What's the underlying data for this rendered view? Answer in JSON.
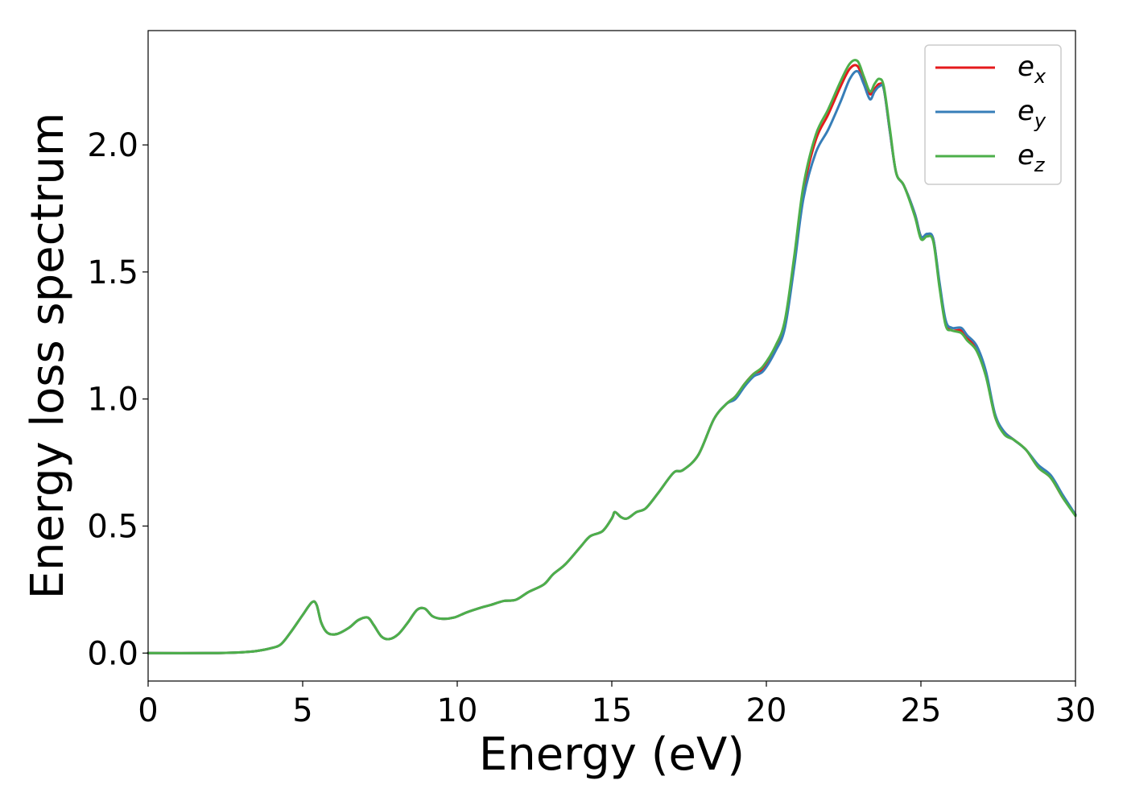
{
  "chart_data": {
    "type": "line",
    "title": "",
    "xlabel": "Energy (eV)",
    "ylabel": "Energy loss spectrum",
    "xlim": [
      0,
      30
    ],
    "ylim": [
      -0.11,
      2.45
    ],
    "xticks": [
      0,
      5,
      10,
      15,
      20,
      25,
      30
    ],
    "xtick_labels": [
      "0",
      "5",
      "10",
      "15",
      "20",
      "25",
      "30"
    ],
    "yticks": [
      0.0,
      0.5,
      1.0,
      1.5,
      2.0
    ],
    "ytick_labels": [
      "0.0",
      "0.5",
      "1.0",
      "1.5",
      "2.0"
    ],
    "grid": false,
    "legend_position": "top-right",
    "series": [
      {
        "name": "e_x",
        "legend_base": "e",
        "legend_sub": "x",
        "color": "#e41a1c",
        "x": [
          0,
          2,
          3,
          3.5,
          4,
          4.3,
          4.6,
          5,
          5.3,
          5.45,
          5.6,
          5.8,
          6.1,
          6.5,
          6.8,
          7.1,
          7.3,
          7.55,
          7.8,
          8.1,
          8.4,
          8.7,
          8.95,
          9.2,
          9.5,
          9.9,
          10.3,
          10.8,
          11.1,
          11.5,
          11.9,
          12.3,
          12.8,
          13.1,
          13.5,
          14,
          14.3,
          14.7,
          15,
          15.1,
          15.3,
          15.5,
          15.8,
          16.1,
          16.5,
          17,
          17.3,
          17.8,
          18.3,
          18.7,
          19,
          19.3,
          19.6,
          19.9,
          20.3,
          20.6,
          20.9,
          21.2,
          21.6,
          22,
          22.4,
          22.7,
          22.95,
          23.15,
          23.35,
          23.5,
          23.65,
          23.8,
          24,
          24.2,
          24.45,
          24.8,
          25,
          25.2,
          25.4,
          25.6,
          25.8,
          26,
          26.3,
          26.5,
          26.8,
          27.1,
          27.4,
          27.7,
          28,
          28.4,
          28.8,
          29.2,
          29.6,
          30
        ],
        "y": [
          0,
          0,
          0.003,
          0.008,
          0.02,
          0.035,
          0.08,
          0.15,
          0.2,
          0.19,
          0.12,
          0.08,
          0.075,
          0.1,
          0.13,
          0.14,
          0.11,
          0.065,
          0.055,
          0.075,
          0.12,
          0.17,
          0.175,
          0.145,
          0.135,
          0.14,
          0.16,
          0.18,
          0.19,
          0.205,
          0.21,
          0.24,
          0.27,
          0.31,
          0.35,
          0.42,
          0.46,
          0.48,
          0.53,
          0.555,
          0.535,
          0.53,
          0.555,
          0.57,
          0.63,
          0.71,
          0.72,
          0.78,
          0.92,
          0.98,
          1.01,
          1.06,
          1.1,
          1.12,
          1.2,
          1.3,
          1.55,
          1.82,
          2.02,
          2.12,
          2.23,
          2.3,
          2.31,
          2.25,
          2.2,
          2.22,
          2.24,
          2.22,
          2.05,
          1.89,
          1.84,
          1.73,
          1.64,
          1.64,
          1.63,
          1.45,
          1.3,
          1.27,
          1.27,
          1.24,
          1.2,
          1.1,
          0.93,
          0.87,
          0.84,
          0.8,
          0.73,
          0.69,
          0.61,
          0.545
        ]
      },
      {
        "name": "e_y",
        "legend_base": "e",
        "legend_sub": "y",
        "color": "#377eb8",
        "x": [
          0,
          2,
          3,
          3.5,
          4,
          4.3,
          4.6,
          5,
          5.3,
          5.45,
          5.6,
          5.8,
          6.1,
          6.5,
          6.8,
          7.1,
          7.3,
          7.55,
          7.8,
          8.1,
          8.4,
          8.7,
          8.95,
          9.2,
          9.5,
          9.9,
          10.3,
          10.8,
          11.1,
          11.5,
          11.9,
          12.3,
          12.8,
          13.1,
          13.5,
          14,
          14.3,
          14.7,
          15,
          15.1,
          15.3,
          15.5,
          15.8,
          16.1,
          16.5,
          17,
          17.3,
          17.8,
          18.3,
          18.7,
          19,
          19.3,
          19.6,
          19.9,
          20.3,
          20.6,
          20.9,
          21.2,
          21.6,
          22,
          22.4,
          22.7,
          22.95,
          23.15,
          23.35,
          23.5,
          23.65,
          23.8,
          24,
          24.2,
          24.45,
          24.8,
          25,
          25.2,
          25.4,
          25.6,
          25.8,
          26,
          26.3,
          26.5,
          26.8,
          27.1,
          27.4,
          27.7,
          28,
          28.4,
          28.8,
          29.2,
          29.6,
          30
        ],
        "y": [
          0,
          0,
          0.003,
          0.008,
          0.02,
          0.035,
          0.08,
          0.15,
          0.2,
          0.19,
          0.12,
          0.08,
          0.075,
          0.1,
          0.13,
          0.14,
          0.11,
          0.065,
          0.055,
          0.075,
          0.12,
          0.17,
          0.175,
          0.145,
          0.135,
          0.14,
          0.16,
          0.18,
          0.19,
          0.205,
          0.21,
          0.24,
          0.27,
          0.31,
          0.35,
          0.42,
          0.46,
          0.48,
          0.53,
          0.555,
          0.535,
          0.53,
          0.555,
          0.57,
          0.63,
          0.71,
          0.72,
          0.78,
          0.92,
          0.98,
          1.0,
          1.05,
          1.09,
          1.11,
          1.19,
          1.28,
          1.52,
          1.79,
          1.97,
          2.06,
          2.17,
          2.26,
          2.29,
          2.24,
          2.18,
          2.21,
          2.23,
          2.22,
          2.05,
          1.89,
          1.84,
          1.73,
          1.64,
          1.65,
          1.63,
          1.46,
          1.31,
          1.28,
          1.28,
          1.25,
          1.21,
          1.11,
          0.94,
          0.87,
          0.84,
          0.8,
          0.74,
          0.7,
          0.62,
          0.545
        ]
      },
      {
        "name": "e_z",
        "legend_base": "e",
        "legend_sub": "z",
        "color": "#4daf4a",
        "x": [
          0,
          2,
          3,
          3.5,
          4,
          4.3,
          4.6,
          5,
          5.3,
          5.45,
          5.6,
          5.8,
          6.1,
          6.5,
          6.8,
          7.1,
          7.3,
          7.55,
          7.8,
          8.1,
          8.4,
          8.7,
          8.95,
          9.2,
          9.5,
          9.9,
          10.3,
          10.8,
          11.1,
          11.5,
          11.9,
          12.3,
          12.8,
          13.1,
          13.5,
          14,
          14.3,
          14.7,
          15,
          15.1,
          15.3,
          15.5,
          15.8,
          16.1,
          16.5,
          17,
          17.3,
          17.8,
          18.3,
          18.7,
          19,
          19.3,
          19.6,
          19.9,
          20.3,
          20.6,
          20.9,
          21.2,
          21.6,
          22,
          22.4,
          22.7,
          22.95,
          23.15,
          23.35,
          23.5,
          23.65,
          23.8,
          24,
          24.2,
          24.45,
          24.8,
          25,
          25.2,
          25.4,
          25.6,
          25.8,
          26,
          26.3,
          26.5,
          26.8,
          27.1,
          27.4,
          27.7,
          28,
          28.4,
          28.8,
          29.2,
          29.6,
          30
        ],
        "y": [
          0,
          0,
          0.003,
          0.008,
          0.02,
          0.035,
          0.08,
          0.15,
          0.2,
          0.19,
          0.12,
          0.08,
          0.075,
          0.1,
          0.13,
          0.14,
          0.11,
          0.065,
          0.055,
          0.075,
          0.12,
          0.17,
          0.175,
          0.145,
          0.135,
          0.14,
          0.16,
          0.18,
          0.19,
          0.205,
          0.21,
          0.24,
          0.27,
          0.31,
          0.35,
          0.42,
          0.46,
          0.48,
          0.53,
          0.555,
          0.535,
          0.53,
          0.555,
          0.57,
          0.63,
          0.71,
          0.72,
          0.78,
          0.92,
          0.98,
          1.01,
          1.06,
          1.1,
          1.13,
          1.21,
          1.31,
          1.56,
          1.84,
          2.04,
          2.14,
          2.25,
          2.32,
          2.33,
          2.27,
          2.21,
          2.24,
          2.26,
          2.23,
          2.06,
          1.89,
          1.84,
          1.72,
          1.63,
          1.64,
          1.62,
          1.44,
          1.29,
          1.27,
          1.26,
          1.23,
          1.19,
          1.09,
          0.93,
          0.86,
          0.84,
          0.8,
          0.73,
          0.69,
          0.61,
          0.54
        ]
      }
    ]
  }
}
